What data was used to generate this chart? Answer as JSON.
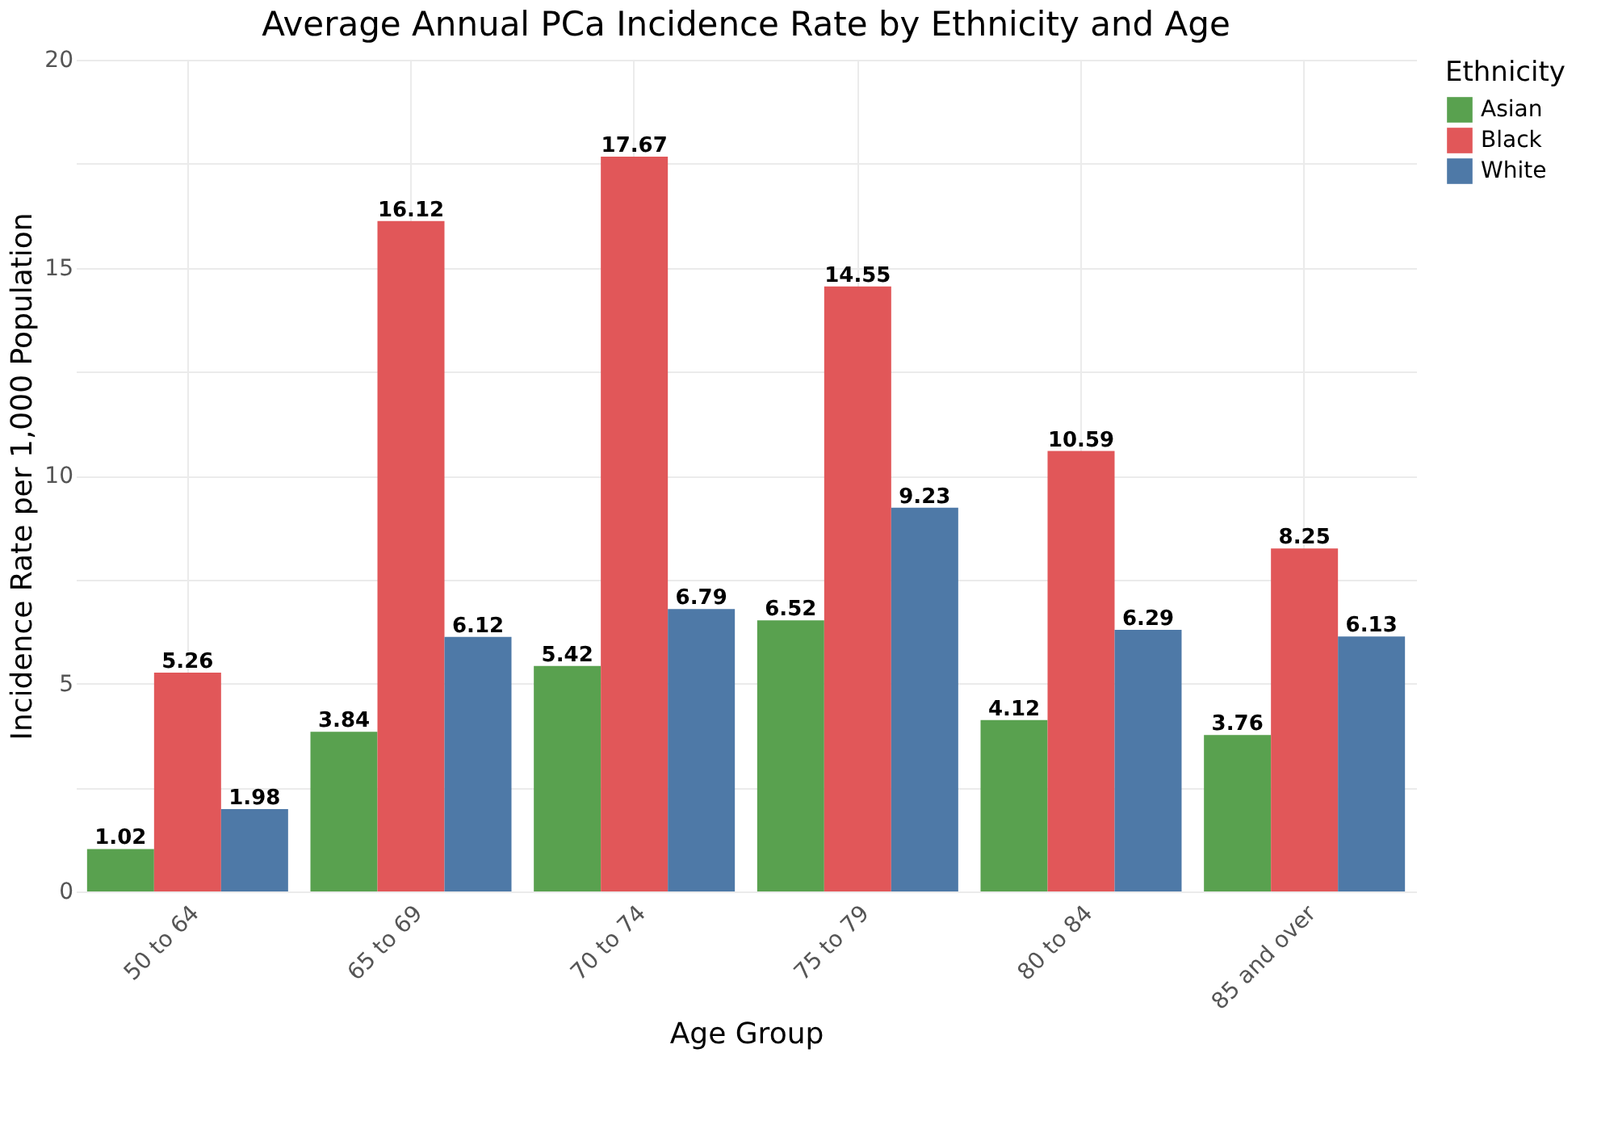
{
  "chart_data": {
    "type": "bar",
    "title": "Average Annual PCa Incidence Rate by Ethnicity and Age",
    "xlabel": "Age Group",
    "ylabel": "Incidence Rate per 1,000 Population",
    "legend_title": "Ethnicity",
    "categories": [
      "50 to 64",
      "65 to 69",
      "70 to 74",
      "75 to 79",
      "80 to 84",
      "85 and over"
    ],
    "series": [
      {
        "name": "Asian",
        "color": "#59a14f",
        "values": [
          1.02,
          3.84,
          5.42,
          6.52,
          4.12,
          3.76
        ]
      },
      {
        "name": "Black",
        "color": "#e15759",
        "values": [
          5.26,
          16.12,
          17.67,
          14.55,
          10.59,
          8.25
        ]
      },
      {
        "name": "White",
        "color": "#4e79a7",
        "values": [
          1.98,
          6.12,
          6.79,
          9.23,
          6.29,
          6.13
        ]
      }
    ],
    "ylim": [
      0,
      20
    ],
    "yticks": [
      0,
      {
        "value": 2.5,
        "label": null
      },
      5,
      {
        "value": 7.5,
        "label": null
      },
      10,
      {
        "value": 12.5,
        "label": null
      },
      15,
      {
        "value": 17.5,
        "label": null
      },
      20
    ],
    "data_labels": true,
    "grid": true,
    "legend": "right"
  }
}
